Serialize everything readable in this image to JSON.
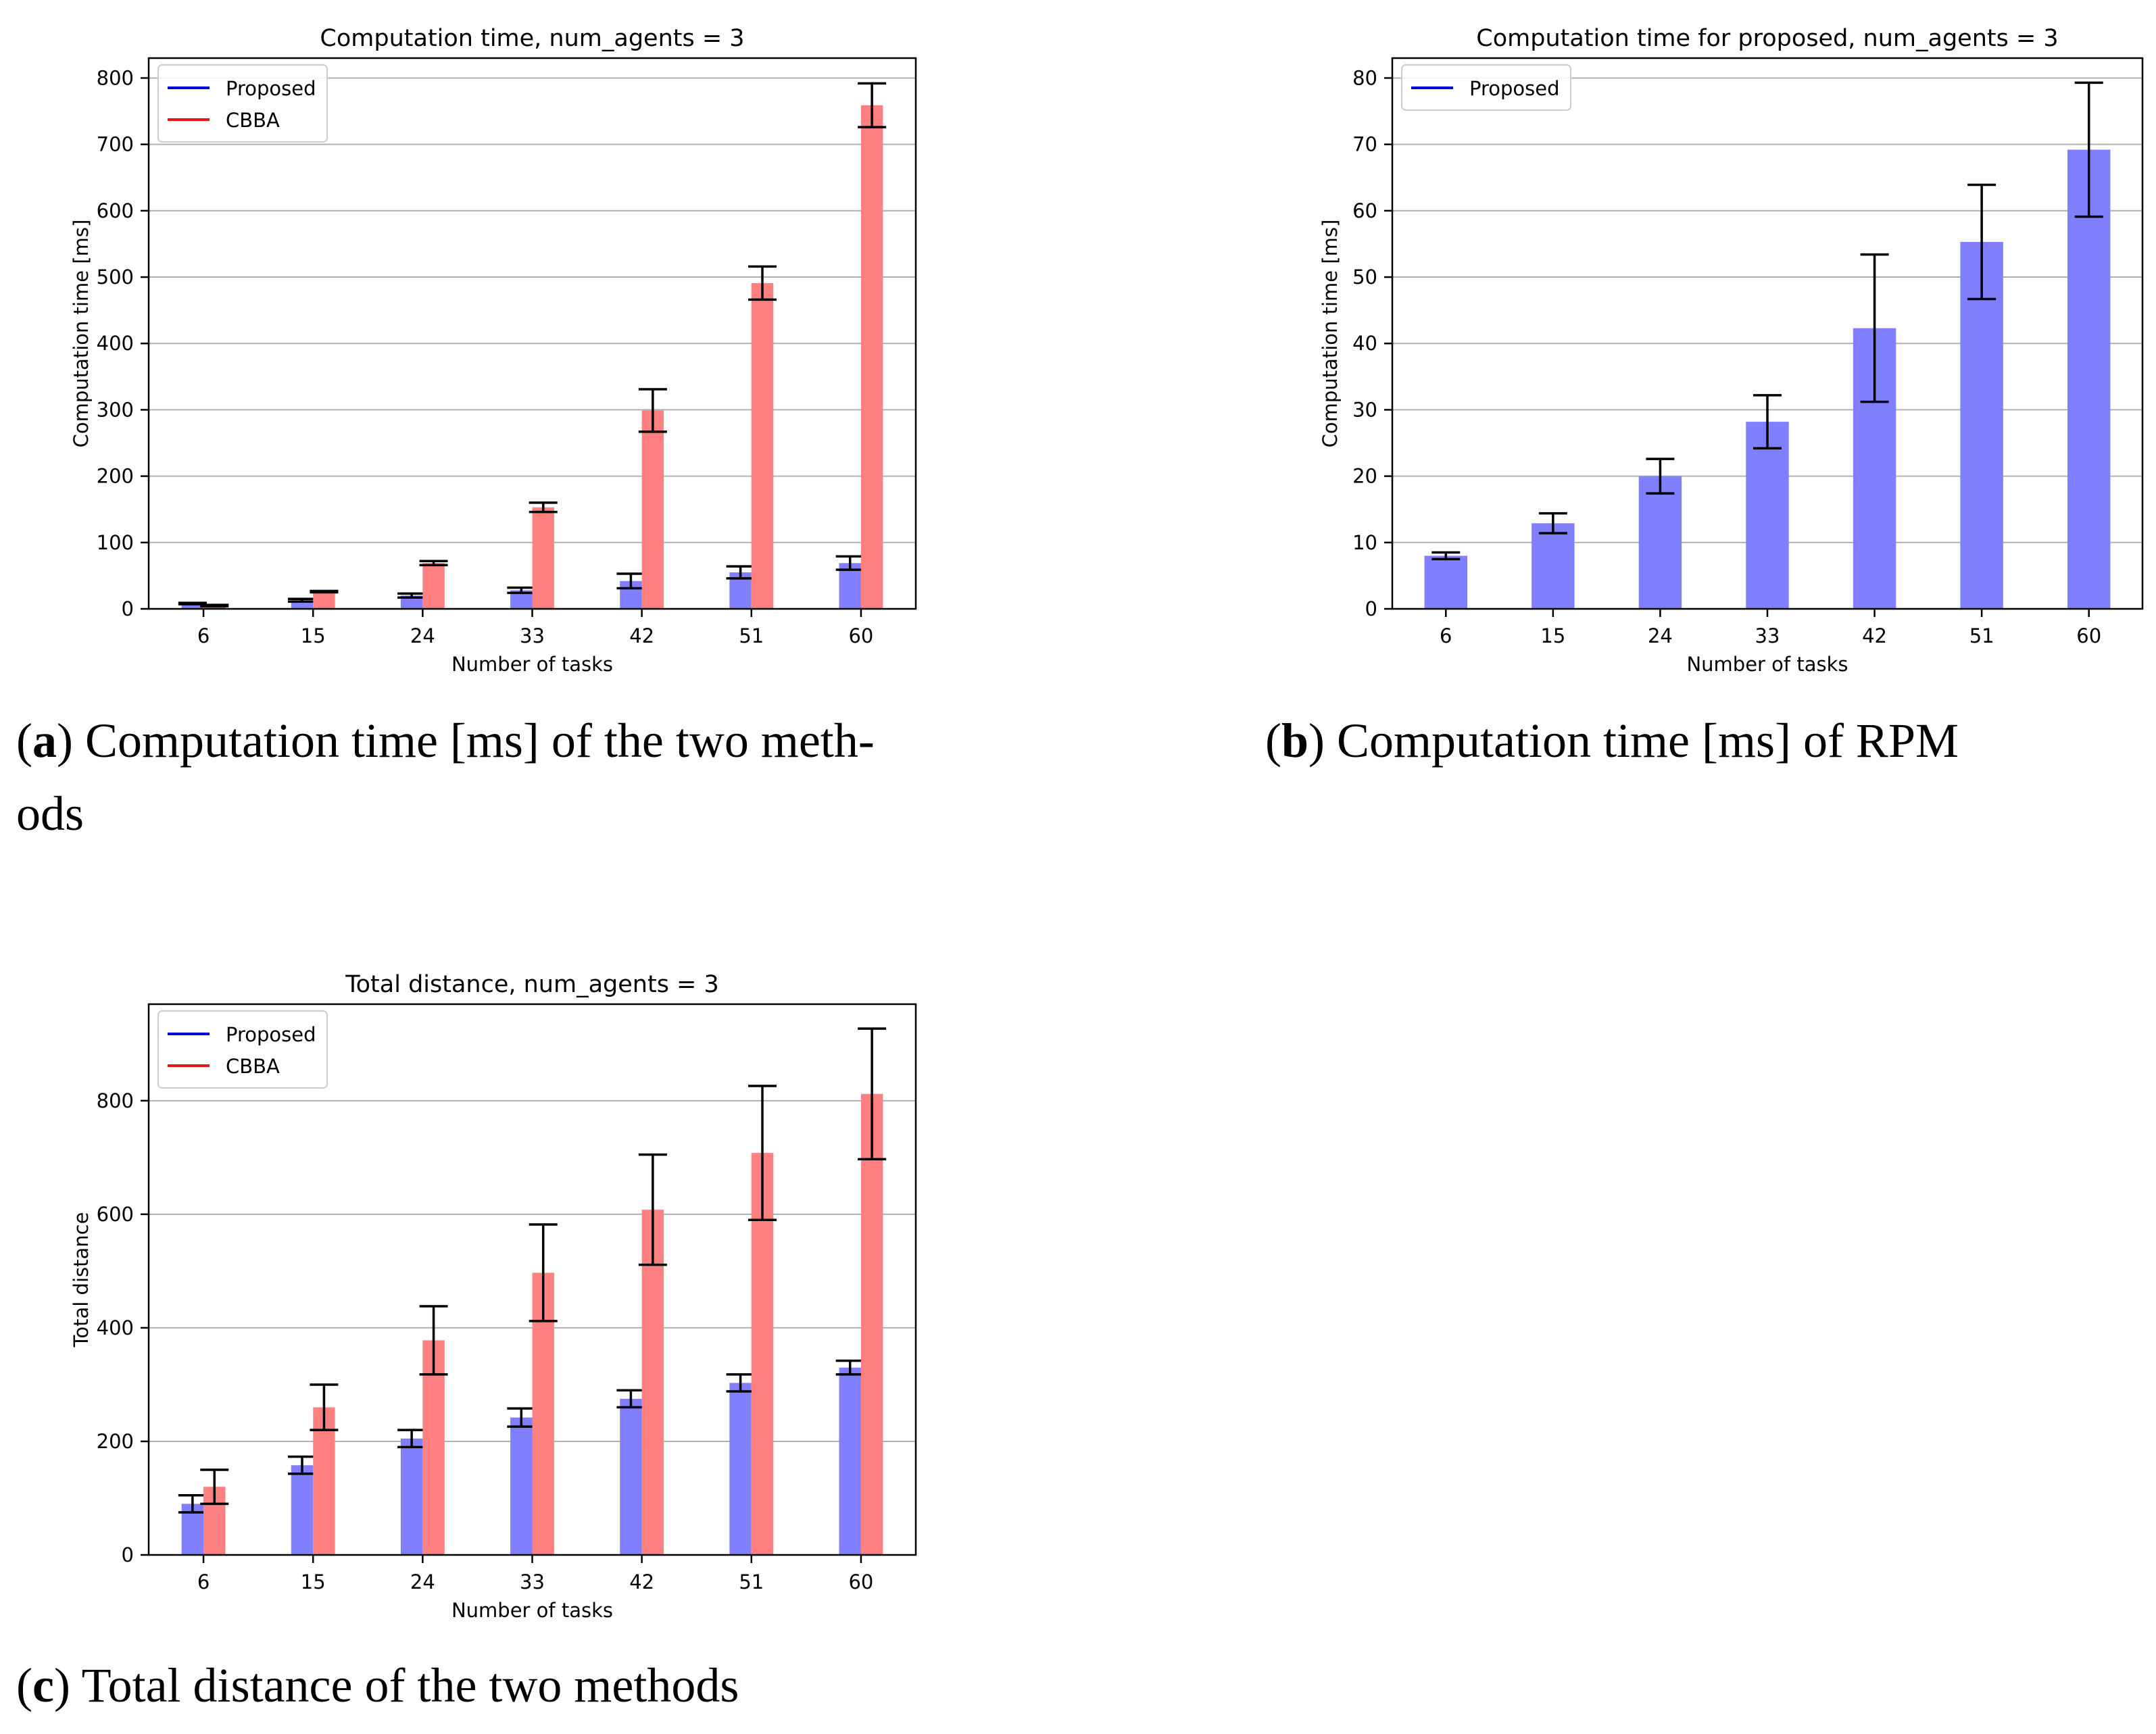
{
  "chart_data": [
    {
      "type": "bar",
      "title": "Computation time, num_agents = 3",
      "xlabel": "Number of tasks",
      "ylabel": "Computation time [ms]",
      "categories": [
        "6",
        "15",
        "24",
        "33",
        "42",
        "51",
        "60"
      ],
      "ylim": [
        0,
        830
      ],
      "yticks": [
        0,
        100,
        200,
        300,
        400,
        500,
        600,
        700,
        800
      ],
      "grid": true,
      "legend_position": "top-left",
      "series": [
        {
          "name": "Proposed",
          "color": "#8080ff",
          "legend_color": "#0000dd",
          "values": [
            8,
            13,
            20,
            28,
            42,
            55,
            69
          ],
          "errors": [
            1,
            2,
            3,
            4,
            11,
            9,
            10
          ]
        },
        {
          "name": "CBBA",
          "color": "#ff8080",
          "legend_color": "#ee1111",
          "values": [
            5,
            26,
            69,
            153,
            299,
            491,
            759
          ],
          "errors": [
            1,
            1,
            3,
            7,
            32,
            25,
            33
          ]
        }
      ],
      "caption_label": "a",
      "caption_text": "Computation time [ms] of the two meth-",
      "caption_text_2": "ods"
    },
    {
      "type": "bar",
      "title": "Computation time for proposed, num_agents = 3",
      "xlabel": "Number of tasks",
      "ylabel": "Computation time [ms]",
      "categories": [
        "6",
        "15",
        "24",
        "33",
        "42",
        "51",
        "60"
      ],
      "ylim": [
        0,
        83
      ],
      "yticks": [
        0,
        10,
        20,
        30,
        40,
        50,
        60,
        70,
        80
      ],
      "grid": true,
      "legend_position": "top-left",
      "series": [
        {
          "name": "Proposed",
          "color": "#8080ff",
          "legend_color": "#0000dd",
          "values": [
            8,
            12.9,
            20,
            28.2,
            42.3,
            55.3,
            69.2
          ],
          "errors": [
            0.5,
            1.5,
            2.6,
            4,
            11.1,
            8.6,
            10.1
          ]
        }
      ],
      "caption_label": "b",
      "caption_text": "Computation time [ms] of RPM"
    },
    {
      "type": "bar",
      "title": "Total distance, num_agents = 3",
      "xlabel": "Number of tasks",
      "ylabel": "Total distance",
      "categories": [
        "6",
        "15",
        "24",
        "33",
        "42",
        "51",
        "60"
      ],
      "ylim": [
        0,
        970
      ],
      "yticks": [
        0,
        200,
        400,
        600,
        800
      ],
      "grid": true,
      "legend_position": "top-left",
      "series": [
        {
          "name": "Proposed",
          "color": "#8080ff",
          "legend_color": "#0000dd",
          "values": [
            90,
            158,
            205,
            242,
            275,
            303,
            330
          ],
          "errors": [
            15,
            15,
            15,
            16,
            15,
            15,
            12
          ]
        },
        {
          "name": "CBBA",
          "color": "#ff8080",
          "legend_color": "#ee1111",
          "values": [
            120,
            260,
            378,
            497,
            608,
            708,
            812
          ],
          "errors": [
            30,
            40,
            60,
            85,
            97,
            118,
            115
          ]
        }
      ],
      "caption_label": "c",
      "caption_text": "Total distance of the two methods"
    }
  ]
}
